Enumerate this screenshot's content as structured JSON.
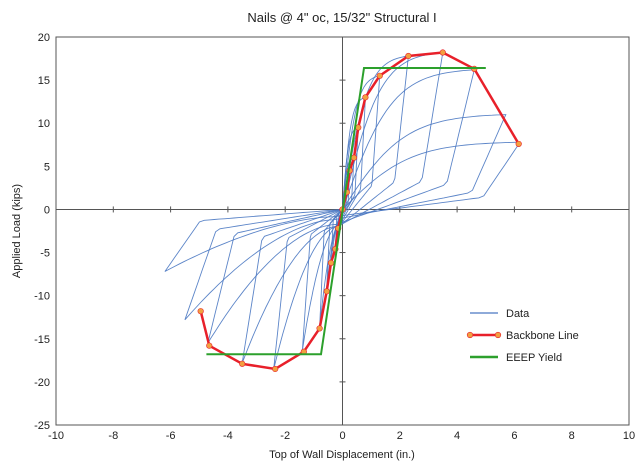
{
  "chart_data": {
    "type": "line",
    "title": "Nails @ 4\" oc, 15/32\" Structural I",
    "xlabel": "Top of Wall Displacement (in.)",
    "ylabel": "Applied Load (kips)",
    "xlim": [
      -10,
      10
    ],
    "ylim": [
      -25,
      20
    ],
    "xticks": [
      -10,
      -8,
      -6,
      -4,
      -2,
      0,
      2,
      4,
      6,
      8,
      10
    ],
    "yticks": [
      -25,
      -20,
      -15,
      -10,
      -5,
      0,
      5,
      10,
      15,
      20
    ],
    "grid": false,
    "legend_position": "center-right",
    "series": [
      {
        "name": "Data",
        "color": "#4a78c2",
        "kind": "hysteresis",
        "loops": [
          {
            "dmax": 0.15,
            "pmax": 2.0,
            "dmin": -0.15,
            "pmin": -2.2
          },
          {
            "dmax": 0.25,
            "pmax": 4.5,
            "dmin": -0.25,
            "pmin": -4.6
          },
          {
            "dmax": 0.4,
            "pmax": 6.0,
            "dmin": -0.4,
            "pmin": -6.2
          },
          {
            "dmax": 0.55,
            "pmax": 9.5,
            "dmin": -0.55,
            "pmin": -9.0
          },
          {
            "dmax": 0.8,
            "pmax": 13.0,
            "dmin": -0.8,
            "pmin": -13.8
          },
          {
            "dmax": 1.3,
            "pmax": 15.5,
            "dmin": -1.4,
            "pmin": -16.3
          },
          {
            "dmax": 2.3,
            "pmax": 17.8,
            "dmin": -2.4,
            "pmin": -18.5
          },
          {
            "dmax": 3.5,
            "pmax": 18.2,
            "dmin": -3.5,
            "pmin": -17.8
          },
          {
            "dmax": 4.6,
            "pmax": 16.2,
            "dmin": -4.7,
            "pmin": -15.5
          },
          {
            "dmax": 5.7,
            "pmax": 11.0,
            "dmin": -5.5,
            "pmin": -12.8
          },
          {
            "dmax": 6.2,
            "pmax": 7.8,
            "dmin": -6.2,
            "pmin": -7.2
          }
        ]
      },
      {
        "name": "Backbone Line",
        "color": "#e8202a",
        "marker_color": "#f2a040",
        "x": [
          -4.95,
          -4.65,
          -3.5,
          -2.35,
          -1.35,
          -0.8,
          -0.55,
          -0.4,
          -0.25,
          -0.15,
          0,
          0.15,
          0.25,
          0.4,
          0.55,
          0.8,
          1.3,
          2.3,
          3.5,
          4.6,
          6.15
        ],
        "y": [
          -11.8,
          -15.8,
          -17.9,
          -18.5,
          -16.5,
          -13.8,
          -9.5,
          -6.2,
          -4.6,
          -2.2,
          0,
          2.0,
          4.5,
          6.0,
          9.5,
          13.0,
          15.5,
          17.8,
          18.2,
          16.3,
          7.6
        ]
      },
      {
        "name": "EEEP Yield",
        "color": "#2ca02c",
        "x": [
          -4.75,
          -0.75,
          0.75,
          5.0
        ],
        "y": [
          -16.8,
          -16.8,
          16.4,
          16.4
        ]
      }
    ]
  }
}
